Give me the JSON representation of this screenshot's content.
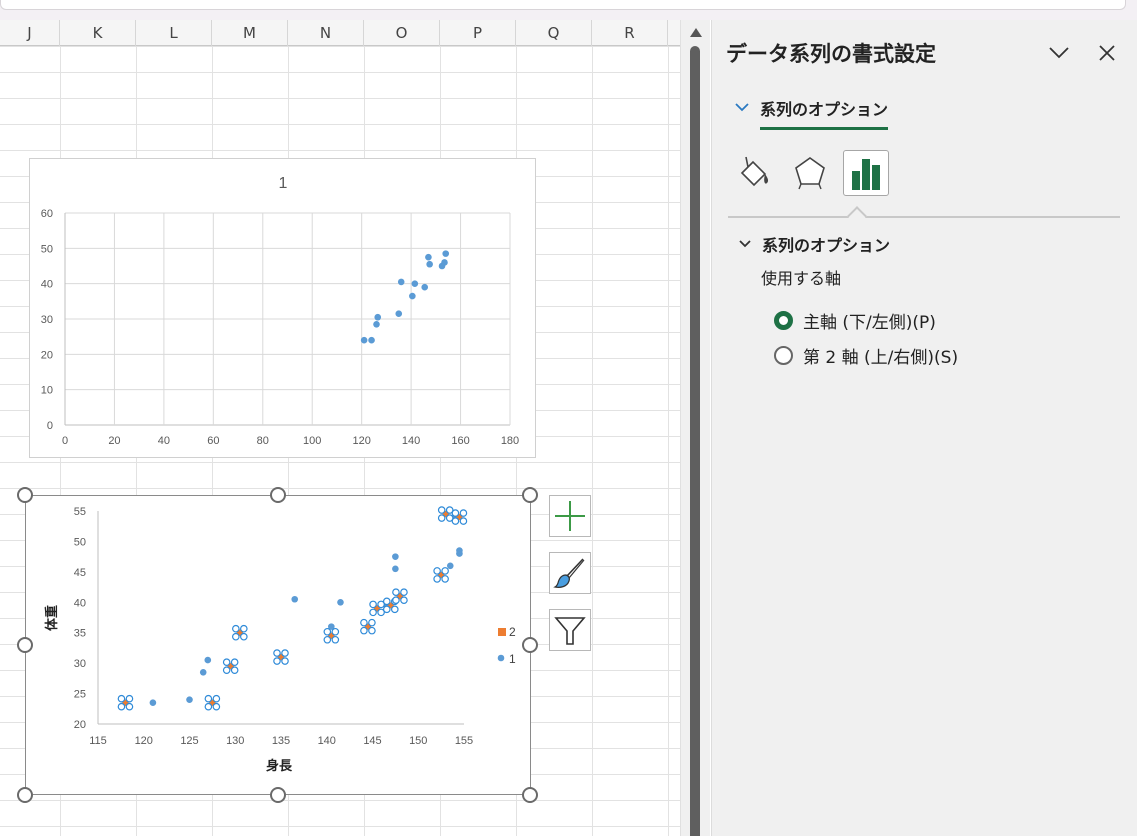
{
  "sheet": {
    "columns": [
      "J",
      "K",
      "L",
      "M",
      "N",
      "O",
      "P",
      "Q",
      "R"
    ]
  },
  "chart1": {
    "chart_data": {
      "type": "scatter",
      "title": "1",
      "xlim": [
        0,
        180
      ],
      "ylim": [
        0,
        60
      ],
      "x_ticks": [
        0,
        20,
        40,
        60,
        80,
        100,
        120,
        140,
        160,
        180
      ],
      "y_ticks": [
        0,
        10,
        20,
        30,
        40,
        50,
        60
      ],
      "grid": true,
      "series": [
        {
          "color": "#5b9bd5",
          "points": [
            [
              121,
              24
            ],
            [
              124,
              24
            ],
            [
              126,
              28.5
            ],
            [
              126.5,
              30.5
            ],
            [
              135,
              31.5
            ],
            [
              136,
              40.5
            ],
            [
              140.5,
              36.5
            ],
            [
              141.5,
              40
            ],
            [
              145.5,
              39
            ],
            [
              147,
              47.5
            ],
            [
              147.5,
              45.5
            ],
            [
              152.5,
              45
            ],
            [
              153.5,
              46
            ],
            [
              154,
              48.5
            ]
          ]
        }
      ]
    }
  },
  "chart2": {
    "chart_data": {
      "type": "scatter",
      "xlabel": "身長",
      "ylabel": "体重",
      "xlim": [
        115,
        155
      ],
      "ylim": [
        20,
        55
      ],
      "x_ticks": [
        115,
        120,
        125,
        130,
        135,
        140,
        145,
        150,
        155
      ],
      "y_ticks": [
        20,
        25,
        30,
        35,
        40,
        45,
        50,
        55
      ],
      "legend": "right",
      "series": [
        {
          "name": "1",
          "color": "#5b9bd5",
          "marker": "circle",
          "points": [
            [
              118,
              23.5
            ],
            [
              121,
              23.5
            ],
            [
              125,
              24
            ],
            [
              127.5,
              23.5
            ],
            [
              126.5,
              28.5
            ],
            [
              127,
              30.5
            ],
            [
              129.5,
              29.5
            ],
            [
              130.5,
              35
            ],
            [
              135,
              31
            ],
            [
              136.5,
              40.5
            ],
            [
              140.5,
              34.5
            ],
            [
              140.5,
              36
            ],
            [
              141.5,
              40
            ],
            [
              144.5,
              36
            ],
            [
              145.5,
              39
            ],
            [
              146.5,
              39.5
            ],
            [
              147.5,
              47.5
            ],
            [
              147.5,
              45.5
            ],
            [
              148,
              41
            ],
            [
              152.5,
              44.5
            ],
            [
              153.5,
              46
            ],
            [
              153,
              54.5
            ],
            [
              154.5,
              48
            ],
            [
              154.5,
              48.5
            ],
            [
              154,
              54
            ]
          ]
        },
        {
          "name": "2",
          "color": "#ed7d31",
          "marker": "square",
          "points": [
            [
              118,
              23.5
            ],
            [
              127.5,
              23.5
            ],
            [
              129.5,
              29.5
            ],
            [
              130.5,
              35
            ],
            [
              135,
              31
            ],
            [
              140.5,
              34.5
            ],
            [
              144.5,
              36
            ],
            [
              145.5,
              39
            ],
            [
              147,
              39.5
            ],
            [
              148,
              41
            ],
            [
              152.5,
              44.5
            ],
            [
              153,
              54.5
            ],
            [
              154.5,
              54
            ]
          ]
        }
      ]
    }
  },
  "pane": {
    "title": "データ系列の書式設定",
    "tab_label": "系列のオプション",
    "section_label": "系列のオプション",
    "axis_label": "使用する軸",
    "radio_primary": "主軸 (下/左側)(P)",
    "radio_secondary": "第 2 軸 (上/右側)(S)",
    "selected_axis": "primary",
    "accent": "#1e7145"
  }
}
